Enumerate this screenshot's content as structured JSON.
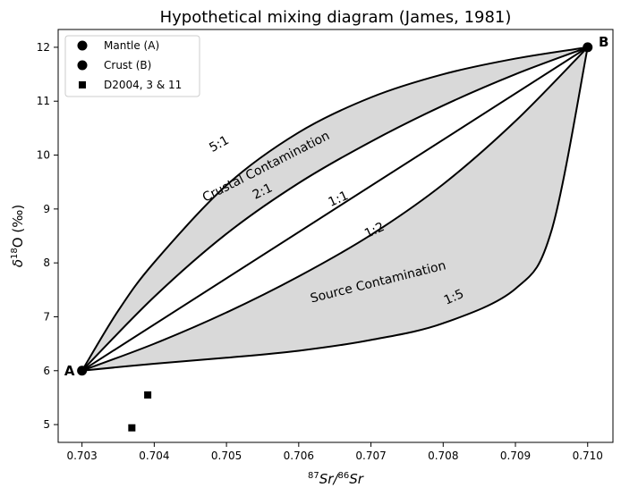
{
  "chart_data": {
    "type": "line",
    "title": "Hypothetical mixing diagram (James, 1981)",
    "xlabel_parts": {
      "sup1": "87",
      "main1": "Sr/",
      "sup2": "86",
      "main2": "Sr"
    },
    "ylabel_parts": {
      "delta": "δ",
      "sup": "18",
      "main": "O (‰)"
    },
    "xlim": [
      0.70267,
      0.71035
    ],
    "ylim": [
      4.67,
      12.33
    ],
    "xticks": [
      0.703,
      0.704,
      0.705,
      0.706,
      0.707,
      0.708,
      0.709,
      0.71
    ],
    "xtick_labels": [
      "0.703",
      "0.704",
      "0.705",
      "0.706",
      "0.707",
      "0.708",
      "0.709",
      "0.710"
    ],
    "yticks": [
      5,
      6,
      7,
      8,
      9,
      10,
      11,
      12
    ],
    "ytick_labels": [
      "5",
      "6",
      "7",
      "8",
      "9",
      "10",
      "11",
      "12"
    ],
    "endmembers": {
      "A": {
        "label": "A",
        "x": 0.703,
        "y": 6.0
      },
      "B": {
        "label": "B",
        "x": 0.71,
        "y": 12.0
      }
    },
    "curves": [
      {
        "label": "5:1",
        "points": [
          [
            0.703,
            6.0
          ],
          [
            0.7035,
            7.11
          ],
          [
            0.704,
            8.01
          ],
          [
            0.705,
            9.44
          ],
          [
            0.706,
            10.42
          ],
          [
            0.707,
            11.07
          ],
          [
            0.708,
            11.5
          ],
          [
            0.709,
            11.79
          ],
          [
            0.71,
            12.0
          ]
        ]
      },
      {
        "label": "2:1",
        "points": [
          [
            0.703,
            6.0
          ],
          [
            0.704,
            7.37
          ],
          [
            0.705,
            8.54
          ],
          [
            0.706,
            9.48
          ],
          [
            0.707,
            10.25
          ],
          [
            0.708,
            10.92
          ],
          [
            0.709,
            11.5
          ],
          [
            0.71,
            12.0
          ]
        ]
      },
      {
        "label": "1:1",
        "points": [
          [
            0.703,
            6.0
          ],
          [
            0.71,
            12.0
          ]
        ]
      },
      {
        "label": "1:2",
        "points": [
          [
            0.703,
            6.0
          ],
          [
            0.704,
            6.5
          ],
          [
            0.705,
            7.08
          ],
          [
            0.706,
            7.75
          ],
          [
            0.707,
            8.52
          ],
          [
            0.708,
            9.46
          ],
          [
            0.709,
            10.63
          ],
          [
            0.71,
            12.0
          ]
        ]
      },
      {
        "label": "1:5",
        "points": [
          [
            0.703,
            6.0
          ],
          [
            0.704,
            6.13
          ],
          [
            0.705,
            6.24
          ],
          [
            0.706,
            6.37
          ],
          [
            0.707,
            6.57
          ],
          [
            0.708,
            6.88
          ],
          [
            0.709,
            7.52
          ],
          [
            0.7095,
            8.6
          ],
          [
            0.71,
            12.0
          ]
        ]
      }
    ],
    "shaded_regions": [
      {
        "name": "Crustal Contamination",
        "between": [
          "5:1",
          "2:1"
        ],
        "color": "#d9d9d9"
      },
      {
        "name": "Source Contamination",
        "between": [
          "1:2",
          "1:5"
        ],
        "color": "#d9d9d9"
      }
    ],
    "curve_labels": [
      {
        "text": "5:1",
        "x": 0.7049,
        "y": 10.2,
        "angle": -29
      },
      {
        "text": "2:1",
        "x": 0.7055,
        "y": 9.32,
        "angle": -26
      },
      {
        "text": "1:1",
        "x": 0.70655,
        "y": 9.18,
        "angle": -24
      },
      {
        "text": "1:2",
        "x": 0.70705,
        "y": 8.6,
        "angle": -25
      },
      {
        "text": "1:5",
        "x": 0.70815,
        "y": 7.36,
        "angle": -24
      }
    ],
    "region_labels": [
      {
        "text": "Crustal Contamination",
        "x": 0.70555,
        "y": 9.78,
        "angle": -27
      },
      {
        "text": "Source Contamination",
        "x": 0.7071,
        "y": 7.64,
        "angle": -14
      }
    ],
    "samples": {
      "name": "D2004, 3 & 11",
      "points": [
        [
          0.70369,
          4.94
        ],
        [
          0.70391,
          5.55
        ]
      ]
    },
    "legend": {
      "placement": "top-left",
      "entries": [
        {
          "label": "Mantle (A)",
          "marker": "circle"
        },
        {
          "label": "Crust (B)",
          "marker": "circle"
        },
        {
          "label": "D2004, 3 & 11",
          "marker": "square"
        }
      ]
    },
    "colors": {
      "line": "#000000",
      "fill": "#d9d9d9",
      "marker": "#000000"
    },
    "grid": false
  }
}
